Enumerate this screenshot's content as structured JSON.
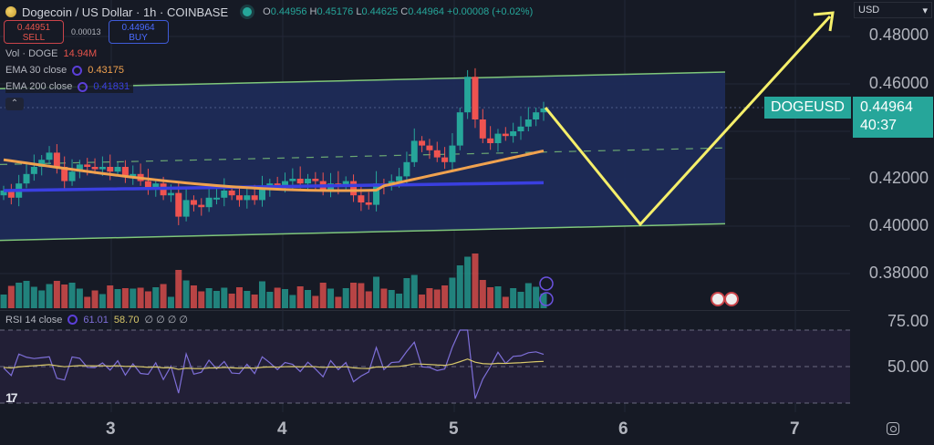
{
  "header": {
    "title": "Dogecoin / US Dollar · 1h · COINBASE",
    "ohlc": {
      "o_label": "O",
      "o": "0.44956",
      "h_label": "H",
      "h": "0.45176",
      "l_label": "L",
      "l": "0.44625",
      "c_label": "C",
      "c": "0.44964",
      "change": "+0.00008 (+0.02%)"
    }
  },
  "trade": {
    "sell_price": "0.44951",
    "sell_label": "SELL",
    "spread": "0.00013",
    "buy_price": "0.44964",
    "buy_label": "BUY"
  },
  "indicators": {
    "vol": {
      "label": "Vol · DOGE",
      "value": "14.94M",
      "color": "#e5534b"
    },
    "ema30": {
      "label": "EMA 30 close",
      "value": "0.43175",
      "color": "#f0a24f"
    },
    "ema200": {
      "label": "EMA 200 close",
      "value": "0.41831",
      "color": "#3a3fe0"
    }
  },
  "price_axis": {
    "currency": "USD",
    "ticks": [
      "0.48000",
      "0.46000",
      "0.42000",
      "0.40000",
      "0.38000"
    ],
    "symbol_tag": "DOGEUSD",
    "last_price": "0.44964",
    "countdown": "40:37"
  },
  "rsi": {
    "label": "RSI 14 close",
    "value": "61.01",
    "ma_value": "58.70",
    "extras": "∅ ∅ ∅ ∅",
    "ticks": [
      "75.00",
      "50.00"
    ]
  },
  "time_axis": {
    "ticks": [
      "3",
      "4",
      "5",
      "6",
      "7"
    ]
  },
  "colors": {
    "up": "#26a69a",
    "down": "#ef5350",
    "channel": "#7fc77a",
    "channel_fill": "#1e2b57",
    "projection": "#f5ef6a",
    "rsi_line": "#7e6fd8",
    "rsi_ma": "#d8c86a",
    "bg": "#161a25"
  },
  "chart_data": {
    "type": "candlestick",
    "title": "Dogecoin / US Dollar · 1h · COINBASE",
    "ylabel": "USD",
    "ylim": [
      0.37,
      0.49
    ],
    "x_ticks": [
      "3",
      "4",
      "5",
      "6",
      "7"
    ],
    "ohlc_last": {
      "open": 0.44956,
      "high": 0.45176,
      "low": 0.44625,
      "close": 0.44964
    },
    "candles_close_approx": [
      0.415,
      0.412,
      0.418,
      0.422,
      0.425,
      0.428,
      0.431,
      0.425,
      0.419,
      0.423,
      0.426,
      0.425,
      0.424,
      0.425,
      0.423,
      0.425,
      0.421,
      0.422,
      0.419,
      0.416,
      0.418,
      0.413,
      0.414,
      0.404,
      0.411,
      0.409,
      0.408,
      0.412,
      0.412,
      0.415,
      0.413,
      0.411,
      0.413,
      0.411,
      0.416,
      0.418,
      0.417,
      0.419,
      0.42,
      0.418,
      0.42,
      0.419,
      0.415,
      0.418,
      0.417,
      0.419,
      0.413,
      0.41,
      0.409,
      0.418,
      0.417,
      0.419,
      0.421,
      0.427,
      0.436,
      0.434,
      0.432,
      0.429,
      0.427,
      0.434,
      0.448,
      0.463,
      0.445,
      0.437,
      0.435,
      0.439,
      0.438,
      0.44,
      0.442,
      0.445,
      0.448,
      0.44964
    ],
    "ema30": {
      "start": 0.428,
      "end": 0.43175
    },
    "ema200": {
      "start": 0.415,
      "end": 0.41831
    },
    "channel": {
      "upper": [
        0.458,
        0.465
      ],
      "lower": [
        0.394,
        0.401
      ],
      "mid_dashed": [
        0.426,
        0.433
      ]
    },
    "projection": [
      {
        "x": "5.5",
        "y": 0.449
      },
      {
        "x": "6.1",
        "y": 0.401
      },
      {
        "x": "7.3",
        "y": 0.484
      }
    ],
    "volume_label": "Vol · DOGE 14.94M",
    "rsi": {
      "period": 14,
      "value": 61.01,
      "ma": 58.7,
      "levels": [
        70,
        50,
        30
      ],
      "ticks": [
        75,
        50
      ]
    }
  }
}
